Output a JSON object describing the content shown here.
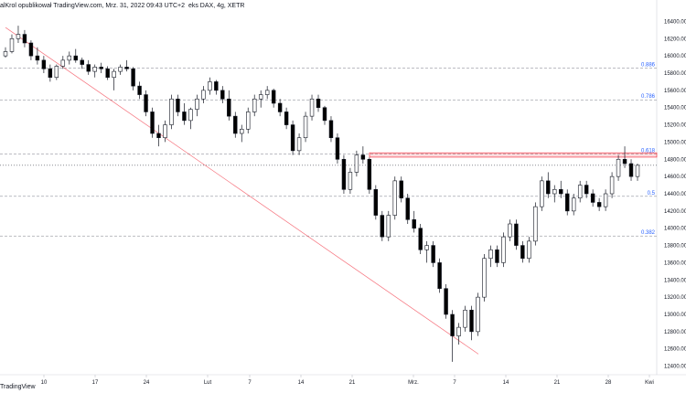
{
  "header": {
    "author": "alKrol opublikował TradingView.com, Mrz. 31, 2022 09:43 UTC+2",
    "symbol": "eks DAX, 4g, XETR"
  },
  "footer": {
    "brand": "TradingView"
  },
  "colors": {
    "up": "#ffffff",
    "down": "#000000",
    "border": "#131722",
    "fib": "#2962ff",
    "trend": "#f23645",
    "zone": "#f23645"
  },
  "price_axis": {
    "labels": [
      "16400.000",
      "16200.000",
      "16000.000",
      "15800.000",
      "15600.000",
      "15400.000",
      "15200.000",
      "15000.000",
      "14800.000",
      "14600.000",
      "14400.000",
      "14200.000",
      "14000.000",
      "13800.000",
      "13600.000",
      "13400.000",
      "13200.000",
      "13000.000",
      "12800.000",
      "12600.000",
      "12400.000"
    ]
  },
  "time_axis": {
    "labels": [
      "10",
      "17",
      "24",
      "Lut",
      "7",
      "14",
      "21",
      "Mrz.",
      "7",
      "14",
      "21",
      "28",
      "Kwi"
    ]
  },
  "chart_data": {
    "type": "candlestick",
    "ylim": [
      12300,
      16500
    ],
    "fib_levels": [
      {
        "label": "0.886",
        "price": 15860
      },
      {
        "label": "0.786",
        "price": 15490
      },
      {
        "label": "0.618",
        "price": 14860
      },
      {
        "label": "0.5",
        "price": 14370
      },
      {
        "label": "0.382",
        "price": 13910
      }
    ],
    "resistance_zone": [
      14825,
      14875
    ],
    "current_price": 14730,
    "trendline": {
      "start_price": 16330,
      "end_price": 12540
    },
    "candles": [
      [
        16000,
        16100,
        15980,
        16050
      ],
      [
        16050,
        16250,
        16030,
        16200
      ],
      [
        16200,
        16350,
        16150,
        16250
      ],
      [
        16250,
        16300,
        16100,
        16150
      ],
      [
        16150,
        16180,
        15950,
        16000
      ],
      [
        16000,
        16100,
        15900,
        15950
      ],
      [
        15950,
        16000,
        15800,
        15850
      ],
      [
        15850,
        15900,
        15700,
        15750
      ],
      [
        15750,
        15900,
        15720,
        15880
      ],
      [
        15880,
        16000,
        15850,
        15950
      ],
      [
        15950,
        16050,
        15900,
        16000
      ],
      [
        16000,
        16080,
        15920,
        15950
      ],
      [
        15950,
        15980,
        15850,
        15900
      ],
      [
        15900,
        15950,
        15780,
        15820
      ],
      [
        15820,
        15900,
        15750,
        15870
      ],
      [
        15870,
        15920,
        15800,
        15850
      ],
      [
        15850,
        15880,
        15720,
        15750
      ],
      [
        15750,
        15850,
        15600,
        15820
      ],
      [
        15820,
        15900,
        15780,
        15870
      ],
      [
        15870,
        15950,
        15820,
        15850
      ],
      [
        15850,
        15870,
        15600,
        15650
      ],
      [
        15650,
        15700,
        15500,
        15550
      ],
      [
        15550,
        15600,
        15300,
        15350
      ],
      [
        15350,
        15400,
        15050,
        15100
      ],
      [
        15100,
        15200,
        14950,
        15050
      ],
      [
        15050,
        15250,
        15000,
        15200
      ],
      [
        15200,
        15550,
        15150,
        15500
      ],
      [
        15500,
        15550,
        15300,
        15350
      ],
      [
        15350,
        15450,
        15200,
        15250
      ],
      [
        15250,
        15400,
        15150,
        15380
      ],
      [
        15380,
        15550,
        15300,
        15500
      ],
      [
        15500,
        15650,
        15450,
        15600
      ],
      [
        15600,
        15750,
        15550,
        15700
      ],
      [
        15700,
        15720,
        15550,
        15600
      ],
      [
        15600,
        15650,
        15450,
        15500
      ],
      [
        15500,
        15600,
        15250,
        15300
      ],
      [
        15300,
        15350,
        15050,
        15100
      ],
      [
        15100,
        15200,
        15000,
        15150
      ],
      [
        15150,
        15400,
        15100,
        15350
      ],
      [
        15350,
        15550,
        15300,
        15500
      ],
      [
        15500,
        15600,
        15400,
        15550
      ],
      [
        15550,
        15650,
        15500,
        15600
      ],
      [
        15600,
        15620,
        15400,
        15450
      ],
      [
        15450,
        15500,
        15300,
        15350
      ],
      [
        15350,
        15400,
        15150,
        15200
      ],
      [
        15200,
        15250,
        14850,
        14900
      ],
      [
        14900,
        15100,
        14850,
        15050
      ],
      [
        15050,
        15350,
        15000,
        15300
      ],
      [
        15300,
        15550,
        15250,
        15500
      ],
      [
        15500,
        15550,
        15350,
        15400
      ],
      [
        15400,
        15420,
        15200,
        15250
      ],
      [
        15250,
        15300,
        15000,
        15050
      ],
      [
        15050,
        15100,
        14750,
        14800
      ],
      [
        14800,
        14850,
        14400,
        14450
      ],
      [
        14450,
        14700,
        14400,
        14650
      ],
      [
        14650,
        14900,
        14600,
        14850
      ],
      [
        14850,
        14950,
        14750,
        14800
      ],
      [
        14800,
        14820,
        14400,
        14450
      ],
      [
        14450,
        14500,
        14100,
        14150
      ],
      [
        14150,
        14200,
        13850,
        13900
      ],
      [
        13900,
        14200,
        13850,
        14150
      ],
      [
        14150,
        14600,
        14100,
        14550
      ],
      [
        14550,
        14600,
        14300,
        14350
      ],
      [
        14350,
        14400,
        14050,
        14100
      ],
      [
        14100,
        14200,
        13950,
        14000
      ],
      [
        14000,
        14050,
        13700,
        13750
      ],
      [
        13750,
        13850,
        13600,
        13800
      ],
      [
        13800,
        13850,
        13550,
        13600
      ],
      [
        13600,
        13650,
        13250,
        13300
      ],
      [
        13300,
        13350,
        12950,
        13000
      ],
      [
        13000,
        13050,
        12450,
        12750
      ],
      [
        12750,
        12900,
        12650,
        12850
      ],
      [
        12850,
        13100,
        12800,
        13050
      ],
      [
        13050,
        13100,
        12700,
        12800
      ],
      [
        12800,
        13250,
        12750,
        13200
      ],
      [
        13200,
        13700,
        13150,
        13650
      ],
      [
        13650,
        13800,
        13550,
        13750
      ],
      [
        13750,
        13800,
        13550,
        13600
      ],
      [
        13600,
        13950,
        13550,
        13900
      ],
      [
        13900,
        14100,
        13850,
        14050
      ],
      [
        14050,
        14100,
        13750,
        13800
      ],
      [
        13800,
        13850,
        13600,
        13650
      ],
      [
        13650,
        13900,
        13600,
        13850
      ],
      [
        13850,
        14300,
        13800,
        14250
      ],
      [
        14250,
        14600,
        14200,
        14550
      ],
      [
        14550,
        14650,
        14350,
        14400
      ],
      [
        14400,
        14500,
        14300,
        14450
      ],
      [
        14450,
        14550,
        14350,
        14400
      ],
      [
        14400,
        14450,
        14150,
        14200
      ],
      [
        14200,
        14400,
        14150,
        14350
      ],
      [
        14350,
        14550,
        14300,
        14500
      ],
      [
        14500,
        14550,
        14350,
        14400
      ],
      [
        14400,
        14450,
        14250,
        14300
      ],
      [
        14300,
        14350,
        14200,
        14250
      ],
      [
        14250,
        14450,
        14200,
        14400
      ],
      [
        14400,
        14650,
        14350,
        14600
      ],
      [
        14600,
        14850,
        14550,
        14800
      ],
      [
        14800,
        14950,
        14700,
        14750
      ],
      [
        14750,
        14800,
        14550,
        14600
      ],
      [
        14600,
        14750,
        14550,
        14730
      ]
    ]
  }
}
